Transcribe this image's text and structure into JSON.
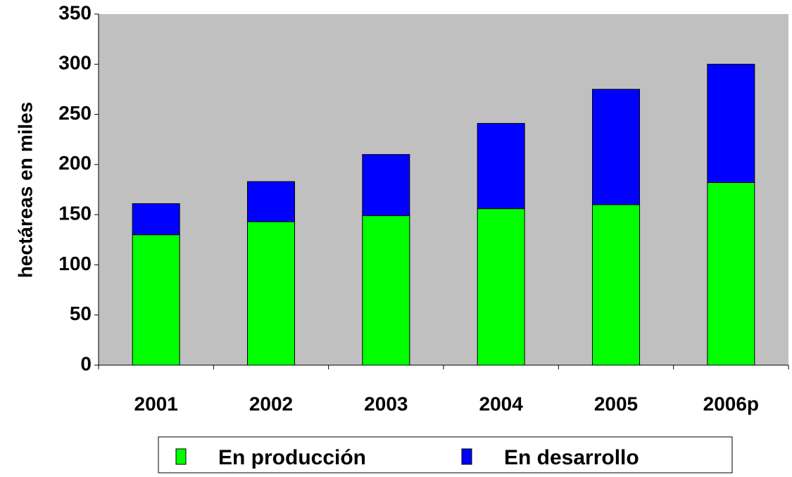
{
  "chart_data": {
    "type": "stacked_bar",
    "ylabel": "hectáreas en miles",
    "categories": [
      "2001",
      "2002",
      "2003",
      "2004",
      "2005",
      "2006p"
    ],
    "series": [
      {
        "name": "En producción",
        "color": "#00ff00",
        "values": [
          130,
          143,
          149,
          156,
          160,
          182
        ]
      },
      {
        "name": "En desarrollo",
        "color": "#0000ff",
        "values": [
          31,
          40,
          61,
          85,
          115,
          118
        ]
      }
    ],
    "ylim": [
      0,
      350
    ],
    "yticks": [
      0,
      50,
      100,
      150,
      200,
      250,
      300,
      350
    ],
    "plot_background": "#c0c0c0",
    "legend": "bottom"
  }
}
